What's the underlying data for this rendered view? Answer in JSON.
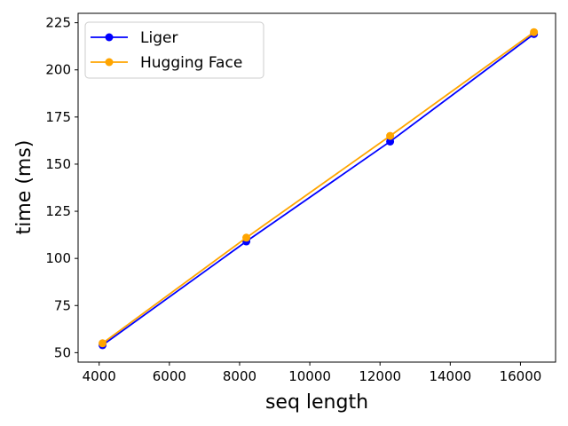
{
  "chart_data": {
    "type": "line",
    "xlabel": "seq length",
    "ylabel": "time (ms)",
    "xlim": [
      3400,
      17000
    ],
    "ylim": [
      45,
      230
    ],
    "xticks": [
      4000,
      6000,
      8000,
      10000,
      12000,
      14000,
      16000
    ],
    "yticks": [
      50,
      75,
      100,
      125,
      150,
      175,
      200,
      225
    ],
    "x": [
      4096,
      8192,
      12288,
      16384
    ],
    "series": [
      {
        "name": "Liger",
        "color": "#0000ff",
        "values": [
          54,
          109,
          162,
          219
        ]
      },
      {
        "name": "Hugging Face",
        "color": "#ffa500",
        "values": [
          55,
          111,
          165,
          220
        ]
      }
    ],
    "grid": false,
    "legend_position": "top-left"
  }
}
